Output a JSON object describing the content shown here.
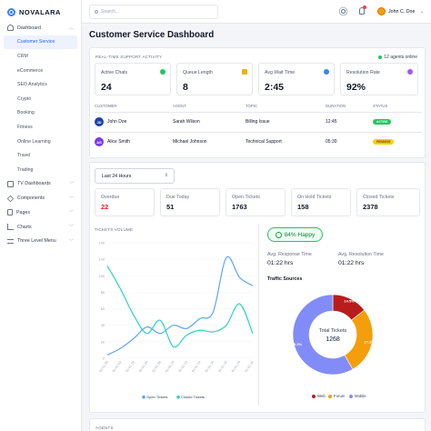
{
  "brand": {
    "name": "NOVALARA"
  },
  "sidebar": {
    "dashboard": "Dashboard",
    "sub_items": [
      "Customer Service",
      "CRM",
      "eCommerce",
      "SEO Analytics",
      "Crypto",
      "Booking",
      "Fitness",
      "Online Learning",
      "Travel",
      "Trading"
    ],
    "tv_dashboards": "TV Dashboards",
    "components": "Components",
    "pages": "Pages",
    "charts": "Charts",
    "three_level_menu": "Three Level Menu"
  },
  "topbar": {
    "search_placeholder": "Search...",
    "user": "John C. Doe"
  },
  "page": {
    "title": "Customer Service Dashboard"
  },
  "realtime": {
    "label": "REAL-TIME SUPPORT ACTIVITY",
    "agents_online": "12 agents online",
    "metrics": [
      {
        "label": "Active Chats",
        "value": "24",
        "color": "#22c55e"
      },
      {
        "label": "Queue Length",
        "value": "8",
        "color": "#eab308"
      },
      {
        "label": "Avg Wait Time",
        "value": "2:45",
        "color": "#3b82f6"
      },
      {
        "label": "Resolution Rate",
        "value": "92%",
        "color": "#a855f7"
      }
    ],
    "table_headers": [
      "CUSTOMER",
      "AGENT",
      "TOPIC",
      "DURATION",
      "STATUS"
    ],
    "rows": [
      {
        "initials": "JD",
        "avatar_color": "#1e40af",
        "customer": "John Doe",
        "agent": "Sarah Wilson",
        "topic": "Billing Issue",
        "duration": "12:45",
        "status": "ACTIVE",
        "status_bg": "#22c55e",
        "status_fg": "#ffffff"
      },
      {
        "initials": "AS",
        "avatar_color": "#7c3aed",
        "customer": "Alice Smith",
        "agent": "Michael Johnson",
        "topic": "Technical Support",
        "duration": "05:30",
        "status": "PENDING",
        "status_bg": "#facc15",
        "status_fg": "#713f12"
      }
    ]
  },
  "filter": {
    "value": "Last 24 Hours"
  },
  "stats": [
    {
      "label": "Overdue",
      "value": "22",
      "color": "#dc2626"
    },
    {
      "label": "Due Today",
      "value": "51",
      "color": "#111827"
    },
    {
      "label": "Open Tickets",
      "value": "1763",
      "color": "#111827"
    },
    {
      "label": "On Hold Tickets",
      "value": "158",
      "color": "#111827"
    },
    {
      "label": "Closed Tickets",
      "value": "2378",
      "color": "#111827"
    }
  ],
  "chart_data": [
    {
      "type": "line",
      "title": "TICKETS VOLUME",
      "x": [
        "01-01 00",
        "01-01 02",
        "01-01 04",
        "01-01 06",
        "01-01 08",
        "01-01 10",
        "01-01 12",
        "01-01 14",
        "01-01 16",
        "01-01 18",
        "01-01 20",
        "01-01 22"
      ],
      "ylim": [
        0,
        140
      ],
      "yticks": [
        0,
        20,
        40,
        60,
        80,
        100,
        120,
        140
      ],
      "series": [
        {
          "name": "Open Tickets",
          "color": "#60a5fa",
          "values": [
            4,
            12,
            24,
            38,
            30,
            40,
            36,
            48,
            56,
            122,
            98,
            88
          ]
        },
        {
          "name": "Closed Tickets",
          "color": "#2dd4bf",
          "values": [
            112,
            84,
            52,
            30,
            46,
            14,
            28,
            34,
            32,
            40,
            66,
            30
          ]
        }
      ]
    },
    {
      "type": "pie",
      "title": "Traffic Sources",
      "center_label": "Total Tickets",
      "center_value": "1268",
      "categories": [
        "Web",
        "Forum",
        "Mobile"
      ],
      "values": [
        14.5,
        27.2,
        58.3
      ],
      "labels": [
        "14.5%",
        "27.2%",
        "58.3%"
      ],
      "colors": [
        "#b91c1c",
        "#f59e0b",
        "#818cf8"
      ]
    }
  ],
  "satisfaction": {
    "happy": "84% Happy",
    "avg_response_label": "Avg. Response Time",
    "avg_response_value": "01:22 hrs",
    "avg_resolution_label": "Avg. Resolution Time",
    "avg_resolution_value": "01:22 hrs"
  },
  "bottom": {
    "label": "AGENTS"
  }
}
